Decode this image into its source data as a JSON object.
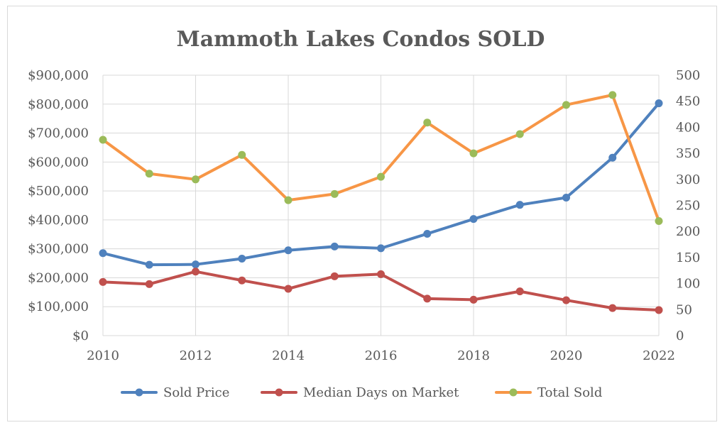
{
  "chart_data": {
    "type": "line",
    "title": "Mammoth Lakes Condos SOLD",
    "x": [
      2010,
      2011,
      2012,
      2013,
      2014,
      2015,
      2016,
      2017,
      2018,
      2019,
      2020,
      2021,
      2022
    ],
    "x_ticks": [
      "2010",
      "2012",
      "2014",
      "2016",
      "2018",
      "2020",
      "2022"
    ],
    "y_left": {
      "ylim": [
        0,
        900000
      ],
      "ticks": [
        "$0",
        "$100,000",
        "$200,000",
        "$300,000",
        "$400,000",
        "$500,000",
        "$600,000",
        "$700,000",
        "$800,000",
        "$900,000"
      ]
    },
    "y_right": {
      "ylim": [
        0,
        500
      ],
      "ticks": [
        "0",
        "50",
        "100",
        "150",
        "200",
        "250",
        "300",
        "350",
        "400",
        "450",
        "500"
      ]
    },
    "grid": true,
    "legend_position": "bottom",
    "series": [
      {
        "name": "Sold Price",
        "axis": "left",
        "color": "#4f81bd",
        "marker_color": "#4f81bd",
        "values": [
          285000,
          245000,
          246000,
          266000,
          295000,
          308000,
          302000,
          352000,
          403000,
          452000,
          477000,
          615000,
          803000
        ]
      },
      {
        "name": "Median Days on Market",
        "axis": "right",
        "color": "#c0504d",
        "marker_color": "#c0504d",
        "values": [
          103,
          99,
          123,
          106,
          90,
          114,
          118,
          71,
          69,
          85,
          68,
          53,
          49
        ]
      },
      {
        "name": "Total Sold",
        "axis": "right",
        "color": "#f79646",
        "marker_color": "#9bbb59",
        "values": [
          376,
          311,
          300,
          347,
          260,
          272,
          305,
          409,
          350,
          387,
          443,
          462,
          220
        ]
      }
    ]
  }
}
